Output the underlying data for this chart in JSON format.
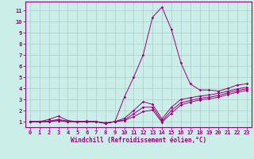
{
  "xlabel": "Windchill (Refroidissement éolien,°C)",
  "background_color": "#cceee8",
  "grid_color": "#aacccc",
  "line_color": "#990077",
  "xlim": [
    -0.5,
    23.5
  ],
  "ylim": [
    0.5,
    11.8
  ],
  "xticks": [
    0,
    1,
    2,
    3,
    4,
    5,
    6,
    7,
    8,
    9,
    10,
    11,
    12,
    13,
    14,
    15,
    16,
    17,
    18,
    19,
    20,
    21,
    22,
    23
  ],
  "yticks": [
    1,
    2,
    3,
    4,
    5,
    6,
    7,
    8,
    9,
    10,
    11
  ],
  "series": [
    [
      1.0,
      1.0,
      1.2,
      1.5,
      1.1,
      1.0,
      1.05,
      1.0,
      0.85,
      1.0,
      3.2,
      5.0,
      7.0,
      10.4,
      11.3,
      9.3,
      6.3,
      4.4,
      3.85,
      3.85,
      3.75,
      4.0,
      4.3,
      4.4
    ],
    [
      1.0,
      1.0,
      1.05,
      1.2,
      1.05,
      1.0,
      1.0,
      1.0,
      0.9,
      1.0,
      1.3,
      2.0,
      2.8,
      2.55,
      1.25,
      2.3,
      3.0,
      3.15,
      3.3,
      3.4,
      3.55,
      3.75,
      3.95,
      4.1
    ],
    [
      1.0,
      1.0,
      1.0,
      1.1,
      1.0,
      1.0,
      1.0,
      1.0,
      0.85,
      1.0,
      1.15,
      1.7,
      2.3,
      2.3,
      1.05,
      2.0,
      2.7,
      2.9,
      3.1,
      3.2,
      3.35,
      3.6,
      3.8,
      3.95
    ],
    [
      1.0,
      1.0,
      1.0,
      1.1,
      1.0,
      1.0,
      1.0,
      1.0,
      0.85,
      1.0,
      1.1,
      1.45,
      1.9,
      2.05,
      0.95,
      1.75,
      2.5,
      2.75,
      2.95,
      3.05,
      3.2,
      3.45,
      3.65,
      3.8
    ]
  ]
}
